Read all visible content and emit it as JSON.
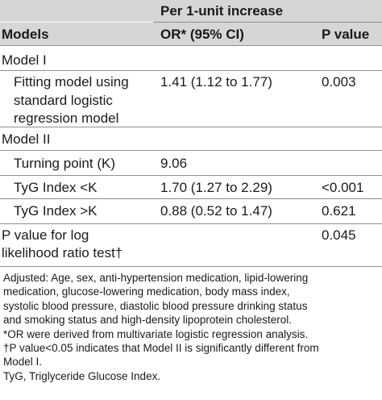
{
  "table": {
    "header": {
      "group": "Per 1-unit increase",
      "models": "Models",
      "or_ci": "OR* (95% CI)",
      "p_value": "P value"
    },
    "sections": [
      {
        "label": "Model I",
        "rows": [
          {
            "name": "Fitting model using\nstandard logistic\nregression model",
            "or_ci": "1.41 (1.12 to 1.77)",
            "p": "0.003"
          }
        ]
      },
      {
        "label": "Model II",
        "rows": [
          {
            "name": "Turning point (K)",
            "or_ci": "9.06",
            "p": ""
          },
          {
            "name": "TyG Index <K",
            "or_ci": "1.70 (1.27 to 2.29)",
            "p": "<0.001"
          },
          {
            "name": "TyG Index >K",
            "or_ci": "0.88 (0.52 to 1.47)",
            "p": "0.621"
          }
        ]
      }
    ],
    "lrt": {
      "name": "P value for log\nlikelihood ratio test†",
      "p": "0.045"
    }
  },
  "footnotes": {
    "adjusted": "Adjusted: Age, sex, anti-hypertension medication, lipid-lowering\nmedication, glucose-lowering medication, body mass index,\nsystolic blood pressure, diastolic blood pressure drinking status\nand smoking status and high-density lipoprotein cholesterol.",
    "or_note": "*OR were derived from multivariate logistic regression analysis.",
    "p_note": "†P value<0.05 indicates that Model II is significantly different from\nModel I.",
    "tyg_note": "TyG, Triglyceride Glucose Index."
  },
  "colors": {
    "shaded_band": "#d6d6d6",
    "rule": "#8f8f8f",
    "text": "#1a1a1a"
  }
}
